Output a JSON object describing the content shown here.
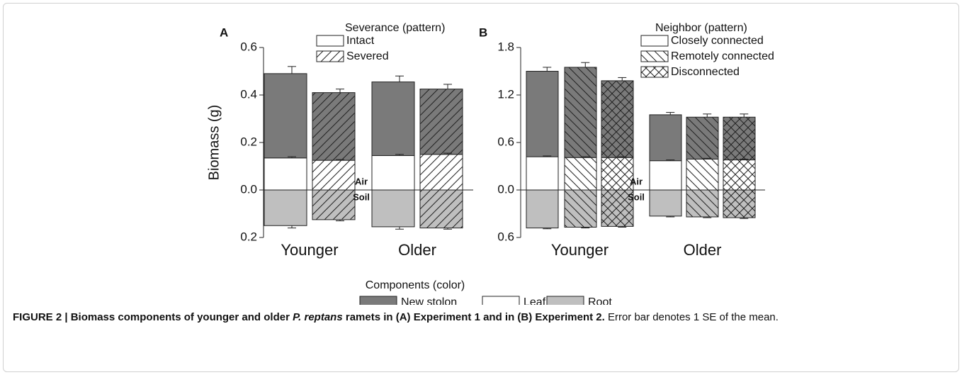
{
  "figure_caption": [
    {
      "text": "FIGURE 2 | Biomass components of younger and older ",
      "style": "bold"
    },
    {
      "text": "P. reptans",
      "style": "bold-italic"
    },
    {
      "text": " ramets in (A) Experiment 1 and in (B) Experiment 2.",
      "style": "bold"
    },
    {
      "text": " Error bar denotes 1 SE of the mean.",
      "style": "normal"
    }
  ],
  "components_title": "Components (color)",
  "components": [
    {
      "name": "New stolon",
      "color": "#7a7a7a"
    },
    {
      "name": "Leaf",
      "color": "#ffffff"
    },
    {
      "name": "Root",
      "color": "#bfbfbf"
    }
  ],
  "chart_data": [
    {
      "type": "bar",
      "label": "A",
      "ylabel": "Biomass (g)",
      "above_label": "Air",
      "below_label": "Soil",
      "categories": [
        "Younger",
        "Older"
      ],
      "legend_title": "Severance (pattern)",
      "groups": [
        {
          "name": "Intact",
          "pattern": "none"
        },
        {
          "name": "Severed",
          "pattern": "forward"
        }
      ],
      "series": [
        {
          "values": [
            [
              0.355,
              0.285
            ],
            [
              0.31,
              0.275
            ]
          ],
          "errors": [
            [
              0.03,
              0.015
            ],
            [
              0.025,
              0.02
            ]
          ]
        },
        {
          "values": [
            [
              0.135,
              0.125
            ],
            [
              0.145,
              0.15
            ]
          ],
          "errors": [
            [
              0.005,
              0.003
            ],
            [
              0.005,
              0.005
            ]
          ]
        },
        {
          "values": [
            [
              -0.15,
              -0.125
            ],
            [
              -0.155,
              -0.16
            ]
          ],
          "errors": [
            [
              0.01,
              0.005
            ],
            [
              0.01,
              0.005
            ]
          ]
        }
      ],
      "ylim": [
        -0.2,
        0.6
      ],
      "yticks": [
        {
          "value": -0.2,
          "label": "0.2"
        },
        {
          "value": 0,
          "label": "0.0"
        },
        0.2,
        0.4,
        0.6
      ]
    },
    {
      "type": "bar",
      "label": "B",
      "above_label": "Air",
      "below_label": "Soil",
      "categories": [
        "Younger",
        "Older"
      ],
      "legend_title": "Neighbor (pattern)",
      "groups": [
        {
          "name": "Closely connected",
          "pattern": "none"
        },
        {
          "name": "Remotely connected",
          "pattern": "back"
        },
        {
          "name": "Disconnected",
          "pattern": "cross"
        }
      ],
      "series": [
        {
          "values": [
            [
              1.08,
              1.14,
              0.97
            ],
            [
              0.58,
              0.53,
              0.54
            ]
          ],
          "errors": [
            [
              0.05,
              0.06,
              0.04
            ],
            [
              0.03,
              0.04,
              0.04
            ]
          ]
        },
        {
          "values": [
            [
              0.42,
              0.41,
              0.41
            ],
            [
              0.37,
              0.39,
              0.38
            ]
          ],
          "errors": [
            [
              0.01,
              0.01,
              0.01
            ],
            [
              0.01,
              0.01,
              0.01
            ]
          ]
        },
        {
          "values": [
            [
              -0.48,
              -0.47,
              -0.46
            ],
            [
              -0.33,
              -0.34,
              -0.35
            ]
          ],
          "errors": [
            [
              0.01,
              0.01,
              0.01
            ],
            [
              0.01,
              0.01,
              0.01
            ]
          ]
        }
      ],
      "ylim": [
        -0.6,
        1.8
      ],
      "yticks": [
        {
          "value": -0.6,
          "label": "0.6"
        },
        {
          "value": 0,
          "label": "0.0"
        },
        0.6,
        1.2,
        1.8
      ]
    }
  ]
}
